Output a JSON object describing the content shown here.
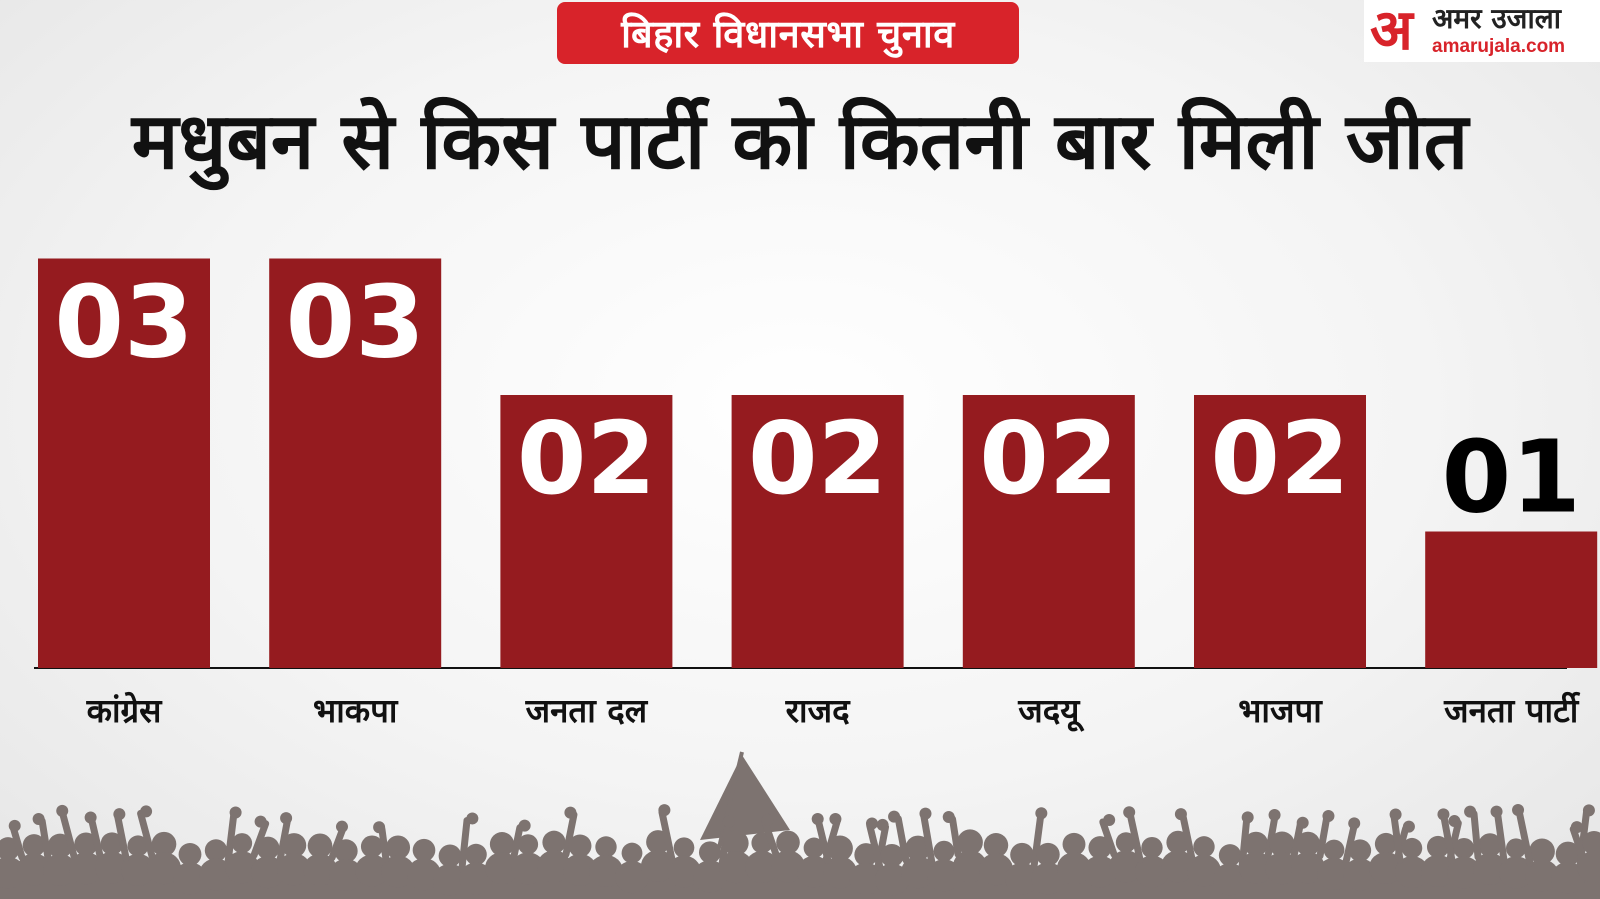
{
  "header": {
    "badge": "बिहार विधानसभा चुनाव",
    "logo_mark": "अ",
    "logo_name": "अमर उजाला",
    "logo_domain": "amarujala.com"
  },
  "colors": {
    "bar": "#951b1f",
    "badge": "#d8232a",
    "value_inside": "#ffffff",
    "value_outside": "#000000",
    "crowd": "#7d7370"
  },
  "chart_data": {
    "type": "bar",
    "title": "मधुबन से किस पार्टी को कितनी बार मिली जीत",
    "categories": [
      "कांग्रेस",
      "भाकपा",
      "जनता दल",
      "राजद",
      "जदयू",
      "भाजपा",
      "जनता पार्टी"
    ],
    "values": [
      3,
      3,
      2,
      2,
      2,
      2,
      1
    ],
    "data_labels": [
      "03",
      "03",
      "02",
      "02",
      "02",
      "02",
      "01"
    ],
    "ylim": [
      0,
      3
    ],
    "grid": false,
    "legend": "none"
  }
}
